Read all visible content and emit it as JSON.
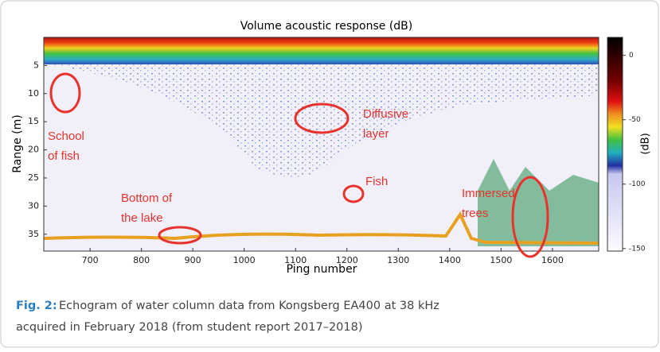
{
  "chart_data": {
    "type": "heatmap",
    "title": "Volume acoustic response (dB)",
    "xlabel": "Ping number",
    "ylabel": "Range (m)",
    "xlim": [
      610,
      1690
    ],
    "xticks": [
      700,
      800,
      900,
      1000,
      1100,
      1200,
      1300,
      1400,
      1500,
      1600
    ],
    "ylim": [
      0,
      38
    ],
    "y_inverted": true,
    "yticks": [
      5,
      10,
      15,
      20,
      25,
      30,
      35
    ],
    "colorbar_label": "(dB)",
    "clim": [
      -152,
      14
    ],
    "colorbar_ticks": [
      0,
      -50,
      -100,
      -150
    ],
    "annotations": [
      {
        "lines": [
          "School",
          "of fish"
        ]
      },
      {
        "lines": [
          "Diffusive",
          "layer"
        ]
      },
      {
        "lines": [
          "Fish"
        ]
      },
      {
        "lines": [
          "Bottom of",
          "the lake"
        ]
      },
      {
        "lines": [
          "Immersed",
          "trees"
        ]
      }
    ]
  },
  "caption": {
    "label": "Fig. 2:",
    "lines": [
      "Echogram of water column data from Kongsberg EA400 at 38 kHz",
      "acquired in February 2018 (from student report 2017–2018)"
    ]
  }
}
